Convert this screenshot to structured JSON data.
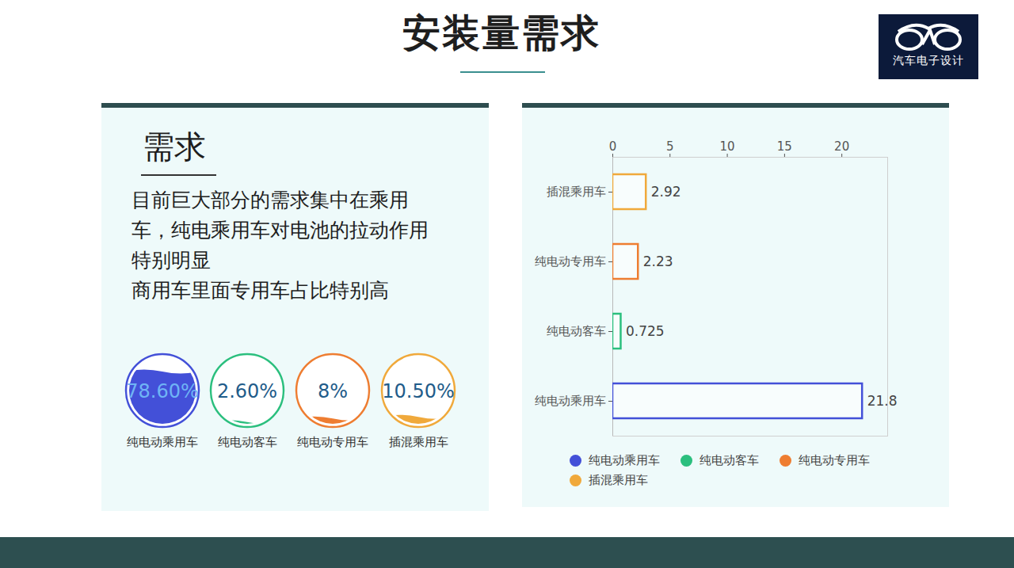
{
  "header": {
    "title": "安装量需求",
    "logo": "汽车电子设计"
  },
  "panel": {
    "heading": "需求",
    "paragraphs": [
      "目前巨大部分的需求集中在乘用车，纯电乘用车对电池的拉动作用特别明显",
      "商用车里面专用车占比特别高"
    ],
    "gauges": {
      "categories": [
        "纯电动乘用车",
        "纯电动客车",
        "纯电动专用车",
        "插混乘用车"
      ],
      "values": [
        78.6,
        2.6,
        8,
        10.5
      ],
      "value_labels": [
        "78.60%",
        "2.60%",
        "8%",
        "10.50%"
      ],
      "colors": [
        "#4350d8",
        "#2bbf7e",
        "#ee7d31",
        "#f0a93b"
      ],
      "ylim": [
        0,
        100
      ]
    }
  },
  "chart_data": {
    "type": "bar",
    "orientation": "horizontal",
    "categories": [
      "纯电动乘用车",
      "纯电动客车",
      "纯电动专用车",
      "插混乘用车"
    ],
    "values": [
      21.8,
      0.725,
      2.23,
      2.92
    ],
    "colors": [
      "#4350d8",
      "#2bbf7e",
      "#ee7d31",
      "#f0a93b"
    ],
    "xlim": [
      0,
      24
    ],
    "xticks": [
      0,
      5,
      10,
      15,
      20
    ],
    "data_labels": true,
    "legend": "bottom"
  }
}
